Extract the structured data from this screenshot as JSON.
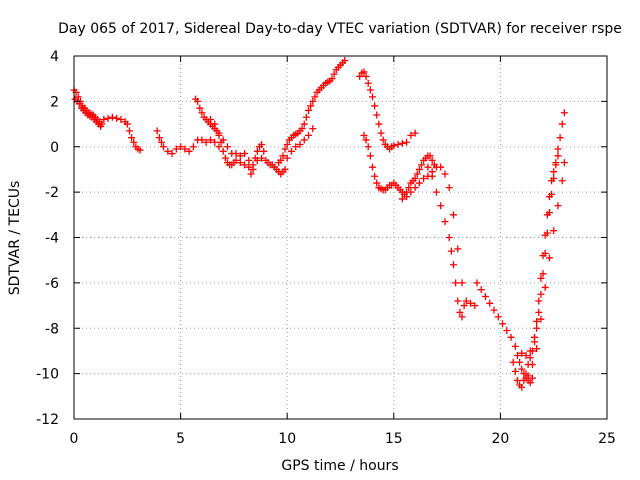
{
  "chart_data": {
    "type": "scatter",
    "title": "Day 065 of 2017, Sidereal Day-to-day VTEC variation (SDTVAR) for receiver rspe",
    "xlabel": "GPS time / hours",
    "ylabel": "SDTVAR / TECUs",
    "xlim": [
      0,
      25
    ],
    "ylim": [
      -12,
      4
    ],
    "x_ticks": [
      0,
      5,
      10,
      15,
      20,
      25
    ],
    "y_ticks": [
      4,
      2,
      0,
      -2,
      -4,
      -6,
      -8,
      -10,
      -12
    ],
    "x_tick_labels": [
      "0",
      "5",
      "10",
      "15",
      "20",
      "25"
    ],
    "y_tick_labels": [
      "4",
      "2",
      "0",
      "-2",
      "-4",
      "-6",
      "-8",
      "-10",
      "-12"
    ],
    "grid": true,
    "marker": "plus",
    "marker_color": "#ff0000",
    "series": [
      {
        "points": [
          [
            0.0,
            2.5
          ],
          [
            0.1,
            2.4
          ],
          [
            0.2,
            2.2
          ],
          [
            0.3,
            2.0
          ],
          [
            0.4,
            1.8
          ],
          [
            0.5,
            1.7
          ],
          [
            0.6,
            1.6
          ],
          [
            0.7,
            1.5
          ],
          [
            0.8,
            1.45
          ],
          [
            0.9,
            1.4
          ],
          [
            1.0,
            1.3
          ],
          [
            1.1,
            1.2
          ],
          [
            1.2,
            1.1
          ],
          [
            1.3,
            1.0
          ],
          [
            0.05,
            2.1
          ],
          [
            0.15,
            2.0
          ],
          [
            0.25,
            1.9
          ],
          [
            0.35,
            1.7
          ],
          [
            0.45,
            1.6
          ],
          [
            0.55,
            1.5
          ],
          [
            0.65,
            1.4
          ],
          [
            0.75,
            1.35
          ],
          [
            0.85,
            1.3
          ],
          [
            0.95,
            1.2
          ],
          [
            1.05,
            1.1
          ],
          [
            1.15,
            1.0
          ],
          [
            1.25,
            0.9
          ],
          [
            1.4,
            1.2
          ],
          [
            1.6,
            1.25
          ],
          [
            1.8,
            1.3
          ],
          [
            2.0,
            1.25
          ],
          [
            2.2,
            1.2
          ],
          [
            2.4,
            1.1
          ],
          [
            2.5,
            1.0
          ],
          [
            2.6,
            0.7
          ],
          [
            2.7,
            0.4
          ],
          [
            2.8,
            0.2
          ],
          [
            2.9,
            0.0
          ],
          [
            3.0,
            -0.1
          ],
          [
            3.1,
            -0.15
          ],
          [
            3.9,
            0.7
          ],
          [
            4.0,
            0.4
          ],
          [
            4.1,
            0.2
          ],
          [
            4.2,
            0.0
          ],
          [
            4.4,
            -0.2
          ],
          [
            4.6,
            -0.3
          ],
          [
            4.8,
            -0.1
          ],
          [
            5.0,
            0.0
          ],
          [
            5.2,
            -0.1
          ],
          [
            5.4,
            -0.2
          ],
          [
            5.6,
            0.0
          ],
          [
            5.8,
            0.3
          ],
          [
            6.0,
            0.3
          ],
          [
            6.2,
            0.2
          ],
          [
            6.4,
            0.3
          ],
          [
            6.6,
            0.2
          ],
          [
            6.8,
            0.0
          ],
          [
            5.7,
            2.1
          ],
          [
            5.8,
            2.0
          ],
          [
            5.9,
            1.7
          ],
          [
            6.0,
            1.5
          ],
          [
            6.1,
            1.3
          ],
          [
            6.2,
            1.2
          ],
          [
            6.3,
            1.1
          ],
          [
            6.4,
            1.0
          ],
          [
            6.5,
            0.9
          ],
          [
            6.6,
            0.8
          ],
          [
            6.7,
            0.7
          ],
          [
            6.8,
            0.5
          ],
          [
            6.9,
            0.2
          ],
          [
            7.0,
            -0.2
          ],
          [
            7.1,
            -0.5
          ],
          [
            7.2,
            -0.7
          ],
          [
            7.3,
            -0.8
          ],
          [
            7.4,
            -0.8
          ],
          [
            7.5,
            -0.7
          ],
          [
            6.4,
            1.2
          ],
          [
            6.6,
            1.0
          ],
          [
            6.8,
            0.6
          ],
          [
            7.0,
            0.3
          ],
          [
            7.2,
            0.0
          ],
          [
            7.4,
            -0.3
          ],
          [
            7.6,
            -0.6
          ],
          [
            7.8,
            -0.7
          ],
          [
            8.0,
            -0.8
          ],
          [
            8.2,
            -0.9
          ],
          [
            8.4,
            -0.8
          ],
          [
            8.6,
            -0.6
          ],
          [
            8.8,
            -0.5
          ],
          [
            7.6,
            -0.3
          ],
          [
            7.8,
            -0.4
          ],
          [
            8.0,
            -0.3
          ],
          [
            8.2,
            -0.6
          ],
          [
            8.3,
            -1.2
          ],
          [
            8.4,
            -1.0
          ],
          [
            8.5,
            -0.5
          ],
          [
            8.6,
            -0.2
          ],
          [
            8.7,
            0.0
          ],
          [
            8.8,
            0.1
          ],
          [
            8.9,
            -0.2
          ],
          [
            9.0,
            -0.6
          ],
          [
            9.1,
            -0.7
          ],
          [
            9.2,
            -0.8
          ],
          [
            9.3,
            -0.8
          ],
          [
            9.4,
            -0.9
          ],
          [
            9.5,
            -1.0
          ],
          [
            9.6,
            -1.1
          ],
          [
            9.7,
            -1.2
          ],
          [
            9.8,
            -1.1
          ],
          [
            9.9,
            -1.0
          ],
          [
            9.6,
            -0.7
          ],
          [
            9.7,
            -0.6
          ],
          [
            9.8,
            -0.4
          ],
          [
            9.9,
            -0.1
          ],
          [
            10.0,
            0.1
          ],
          [
            10.1,
            0.3
          ],
          [
            10.2,
            0.4
          ],
          [
            10.3,
            0.5
          ],
          [
            10.4,
            0.55
          ],
          [
            10.5,
            0.6
          ],
          [
            10.6,
            0.7
          ],
          [
            10.7,
            0.8
          ],
          [
            10.8,
            1.0
          ],
          [
            10.9,
            1.3
          ],
          [
            11.0,
            1.6
          ],
          [
            11.1,
            1.8
          ],
          [
            11.2,
            2.0
          ],
          [
            11.3,
            2.2
          ],
          [
            11.4,
            2.4
          ],
          [
            11.5,
            2.5
          ],
          [
            11.6,
            2.6
          ],
          [
            11.7,
            2.7
          ],
          [
            11.8,
            2.8
          ],
          [
            11.9,
            2.85
          ],
          [
            12.0,
            2.9
          ],
          [
            12.1,
            3.0
          ],
          [
            12.2,
            3.2
          ],
          [
            12.3,
            3.4
          ],
          [
            12.4,
            3.5
          ],
          [
            12.5,
            3.6
          ],
          [
            12.6,
            3.7
          ],
          [
            12.7,
            3.8
          ],
          [
            10.0,
            -0.5
          ],
          [
            10.2,
            -0.2
          ],
          [
            10.4,
            0.0
          ],
          [
            10.6,
            0.1
          ],
          [
            10.8,
            0.3
          ],
          [
            11.0,
            0.5
          ],
          [
            11.2,
            0.8
          ],
          [
            13.4,
            3.1
          ],
          [
            13.5,
            3.25
          ],
          [
            13.6,
            3.3
          ],
          [
            13.7,
            3.1
          ],
          [
            13.8,
            2.8
          ],
          [
            13.9,
            2.5
          ],
          [
            14.0,
            2.2
          ],
          [
            14.1,
            1.8
          ],
          [
            14.2,
            1.4
          ],
          [
            14.3,
            1.0
          ],
          [
            14.4,
            0.6
          ],
          [
            14.5,
            0.3
          ],
          [
            14.6,
            0.1
          ],
          [
            14.7,
            0.0
          ],
          [
            14.8,
            -0.1
          ],
          [
            14.9,
            0.0
          ],
          [
            15.0,
            0.05
          ],
          [
            15.2,
            0.1
          ],
          [
            15.4,
            0.15
          ],
          [
            15.6,
            0.2
          ],
          [
            15.8,
            0.5
          ],
          [
            16.0,
            0.6
          ],
          [
            13.6,
            0.5
          ],
          [
            13.7,
            0.3
          ],
          [
            13.8,
            0.0
          ],
          [
            13.9,
            -0.4
          ],
          [
            14.0,
            -0.9
          ],
          [
            14.1,
            -1.3
          ],
          [
            14.2,
            -1.6
          ],
          [
            14.3,
            -1.8
          ],
          [
            14.4,
            -1.85
          ],
          [
            14.5,
            -1.9
          ],
          [
            14.6,
            -1.9
          ],
          [
            14.7,
            -1.8
          ],
          [
            14.8,
            -1.7
          ],
          [
            14.9,
            -1.7
          ],
          [
            15.0,
            -1.6
          ],
          [
            15.1,
            -1.7
          ],
          [
            15.2,
            -1.8
          ],
          [
            15.3,
            -1.9
          ],
          [
            15.4,
            -2.0
          ],
          [
            15.5,
            -2.1
          ],
          [
            15.6,
            -2.0
          ],
          [
            15.7,
            -1.8
          ],
          [
            15.8,
            -1.6
          ],
          [
            15.9,
            -1.5
          ],
          [
            16.0,
            -1.4
          ],
          [
            16.1,
            -1.2
          ],
          [
            16.2,
            -1.0
          ],
          [
            16.3,
            -0.8
          ],
          [
            16.4,
            -0.6
          ],
          [
            16.5,
            -0.5
          ],
          [
            16.6,
            -0.4
          ],
          [
            16.7,
            -0.4
          ],
          [
            16.8,
            -0.6
          ],
          [
            16.9,
            -0.8
          ],
          [
            15.4,
            -2.3
          ],
          [
            15.6,
            -2.2
          ],
          [
            15.8,
            -2.0
          ],
          [
            16.0,
            -1.8
          ],
          [
            16.2,
            -1.6
          ],
          [
            16.4,
            -1.4
          ],
          [
            16.6,
            -1.3
          ],
          [
            16.8,
            -1.1
          ],
          [
            17.0,
            -0.9
          ],
          [
            17.2,
            -0.9
          ],
          [
            17.4,
            -1.2
          ],
          [
            17.6,
            -1.8
          ],
          [
            17.8,
            -3.0
          ],
          [
            18.0,
            -4.5
          ],
          [
            18.2,
            -6.0
          ],
          [
            18.4,
            -6.8
          ],
          [
            18.6,
            -6.9
          ],
          [
            18.8,
            -7.0
          ],
          [
            16.6,
            -0.9
          ],
          [
            16.8,
            -1.3
          ],
          [
            17.0,
            -2.0
          ],
          [
            17.2,
            -2.6
          ],
          [
            17.4,
            -3.3
          ],
          [
            17.6,
            -4.0
          ],
          [
            17.7,
            -4.6
          ],
          [
            17.8,
            -5.2
          ],
          [
            17.9,
            -6.0
          ],
          [
            18.0,
            -6.8
          ],
          [
            18.1,
            -7.3
          ],
          [
            18.2,
            -7.5
          ],
          [
            18.3,
            -7.0
          ],
          [
            18.9,
            -6.0
          ],
          [
            19.1,
            -6.3
          ],
          [
            19.3,
            -6.6
          ],
          [
            19.5,
            -6.9
          ],
          [
            19.7,
            -7.2
          ],
          [
            19.9,
            -7.5
          ],
          [
            20.1,
            -7.8
          ],
          [
            20.3,
            -8.1
          ],
          [
            20.5,
            -8.4
          ],
          [
            20.7,
            -8.8
          ],
          [
            20.8,
            -9.2
          ],
          [
            20.9,
            -9.5
          ],
          [
            21.0,
            -9.8
          ],
          [
            21.1,
            -10.0
          ],
          [
            21.2,
            -10.2
          ],
          [
            21.3,
            -10.3
          ],
          [
            21.4,
            -10.4
          ],
          [
            21.5,
            -10.2
          ],
          [
            20.6,
            -9.5
          ],
          [
            20.7,
            -9.9
          ],
          [
            20.8,
            -10.3
          ],
          [
            20.9,
            -10.5
          ],
          [
            21.0,
            -10.6
          ],
          [
            21.1,
            -10.3
          ],
          [
            21.2,
            -10.0
          ],
          [
            21.3,
            -9.6
          ],
          [
            21.4,
            -9.3
          ],
          [
            21.5,
            -9.0
          ],
          [
            21.6,
            -8.4
          ],
          [
            21.7,
            -7.7
          ],
          [
            21.8,
            -6.8
          ],
          [
            21.9,
            -5.8
          ],
          [
            22.0,
            -4.8
          ],
          [
            22.1,
            -3.9
          ],
          [
            22.2,
            -3.0
          ],
          [
            22.3,
            -2.2
          ],
          [
            22.4,
            -1.5
          ],
          [
            22.5,
            -1.1
          ],
          [
            22.6,
            -0.8
          ],
          [
            22.7,
            -0.4
          ],
          [
            21.0,
            -9.1
          ],
          [
            21.2,
            -9.2
          ],
          [
            21.4,
            -9.0
          ],
          [
            21.6,
            -8.6
          ],
          [
            21.7,
            -8.0
          ],
          [
            21.8,
            -7.3
          ],
          [
            21.9,
            -6.5
          ],
          [
            22.0,
            -5.6
          ],
          [
            22.1,
            -4.7
          ],
          [
            22.2,
            -3.8
          ],
          [
            22.3,
            -2.9
          ],
          [
            22.4,
            -2.1
          ],
          [
            22.5,
            -1.4
          ],
          [
            22.6,
            -0.7
          ],
          [
            22.7,
            -0.1
          ],
          [
            22.8,
            0.4
          ],
          [
            22.9,
            1.0
          ],
          [
            23.0,
            1.5
          ],
          [
            21.3,
            -10.1
          ],
          [
            21.5,
            -9.6
          ],
          [
            21.7,
            -8.9
          ],
          [
            21.9,
            -7.6
          ],
          [
            22.1,
            -6.2
          ],
          [
            22.3,
            -4.9
          ],
          [
            22.5,
            -3.7
          ],
          [
            22.7,
            -2.6
          ],
          [
            22.9,
            -1.5
          ],
          [
            23.0,
            -0.7
          ]
        ]
      }
    ]
  }
}
